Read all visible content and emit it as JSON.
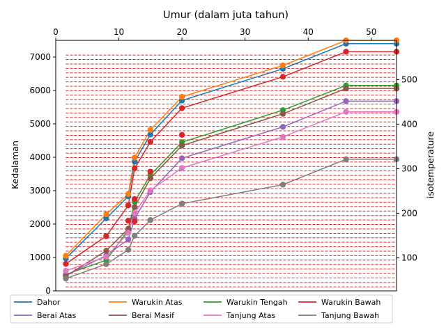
{
  "chart_data": {
    "type": "line",
    "title": "Umur (dalam juta tahun)",
    "xlabel": "",
    "ylabel": "Kedalaman",
    "y2label": "isotemperature",
    "xlim": [
      0,
      54
    ],
    "ylim": [
      0,
      7500
    ],
    "y2lim": [
      26,
      588
    ],
    "xticks": [
      "0",
      "10",
      "20",
      "30",
      "40",
      "50"
    ],
    "yticks": [
      "0",
      "1000",
      "2000",
      "3000",
      "4000",
      "5000",
      "6000",
      "7000"
    ],
    "y2ticks": [
      "100",
      "200",
      "300",
      "400",
      "500"
    ],
    "x_axis_position": "top",
    "isotherm_lines": {
      "color": "#d62728",
      "style": "dashed",
      "start": 35,
      "end": 560,
      "step": 10
    },
    "x": [
      1.6,
      8,
      11.5,
      12.5,
      15,
      20,
      36,
      46,
      54
    ],
    "series": [
      {
        "name": "Dahor",
        "color": "#1f77b4",
        "values": [
          970,
          2170,
          2830,
          3870,
          4680,
          5700,
          6650,
          7400,
          7400
        ]
      },
      {
        "name": "Warukin Atas",
        "color": "#ff7f0e",
        "values": [
          1050,
          2290,
          2900,
          3990,
          4820,
          5810,
          6750,
          7500,
          7500
        ]
      },
      {
        "name": "Warukin Tengah",
        "color": "#2ca02c",
        "values": [
          490,
          920,
          1830,
          2670,
          3470,
          4450,
          5410,
          6150,
          6150
        ]
      },
      {
        "name": "Warukin Bawah",
        "color": "#d62728",
        "values": [
          810,
          1640,
          2560,
          3670,
          4460,
          5470,
          6410,
          7160,
          7160
        ]
      },
      {
        "name": "Berai Atas",
        "color": "#9467bd",
        "values": [
          460,
          1060,
          1540,
          2160,
          2960,
          3970,
          4910,
          5680,
          5680
        ]
      },
      {
        "name": "Berai Masif",
        "color": "#8c564b",
        "values": [
          440,
          1200,
          1860,
          2510,
          3370,
          4350,
          5300,
          6060,
          6060
        ]
      },
      {
        "name": "Tanjung Atas",
        "color": "#e377c2",
        "values": [
          600,
          1020,
          1740,
          2330,
          3010,
          3680,
          4610,
          5360,
          5360
        ]
      },
      {
        "name": "Tanjung Bawah",
        "color": "#7f7f7f",
        "values": [
          370,
          800,
          1230,
          1650,
          2120,
          2610,
          3180,
          3940,
          3940
        ]
      }
    ],
    "point_series": [
      {
        "series": "Dahor",
        "color": "#1f77b4",
        "points": [
          [
            1.6,
            970
          ],
          [
            8,
            2170
          ],
          [
            11.5,
            2830
          ],
          [
            12.5,
            3870
          ],
          [
            15,
            4680
          ],
          [
            20,
            5700
          ],
          [
            36,
            6650
          ],
          [
            46,
            7400
          ],
          [
            54,
            7400
          ]
        ]
      },
      {
        "series": "Warukin Atas",
        "color": "#ff7f0e",
        "points": [
          [
            1.6,
            1050
          ],
          [
            8,
            2290
          ],
          [
            11.5,
            2900
          ],
          [
            12.5,
            3990
          ],
          [
            15,
            4820
          ],
          [
            20,
            5810
          ],
          [
            36,
            6750
          ],
          [
            46,
            7500
          ],
          [
            54,
            7500
          ]
        ]
      },
      {
        "series": "Warukin Tengah",
        "color": "#2ca02c",
        "points": [
          [
            1.6,
            490
          ],
          [
            8,
            920
          ],
          [
            11.5,
            1830
          ],
          [
            12.5,
            2670
          ],
          [
            15,
            3470
          ],
          [
            20,
            4450
          ],
          [
            36,
            5410
          ],
          [
            46,
            6150
          ],
          [
            54,
            6150
          ]
        ]
      },
      {
        "series": "Warukin Bawah",
        "color": "#d62728",
        "points": [
          [
            1.6,
            810
          ],
          [
            8,
            1640
          ],
          [
            11.5,
            2560
          ],
          [
            12.5,
            3670
          ],
          [
            15,
            4460
          ],
          [
            20,
            5470
          ],
          [
            36,
            6410
          ],
          [
            46,
            7160
          ],
          [
            54,
            7160
          ]
        ]
      },
      {
        "series": "Berai Atas",
        "color": "#9467bd",
        "points": [
          [
            1.6,
            460
          ],
          [
            8,
            1060
          ],
          [
            11.5,
            1540
          ],
          [
            12.5,
            2160
          ],
          [
            15,
            2960
          ],
          [
            20,
            3970
          ],
          [
            36,
            4910
          ],
          [
            46,
            5680
          ],
          [
            54,
            5680
          ]
        ]
      },
      {
        "series": "Berai Masif",
        "color": "#8c564b",
        "points": [
          [
            1.6,
            440
          ],
          [
            8,
            1200
          ],
          [
            11.5,
            1860
          ],
          [
            12.5,
            2510
          ],
          [
            15,
            3370
          ],
          [
            20,
            4350
          ],
          [
            36,
            5300
          ],
          [
            46,
            6060
          ],
          [
            54,
            6060
          ]
        ]
      },
      {
        "series": "Tanjung Atas",
        "color": "#e377c2",
        "points": [
          [
            1.6,
            600
          ],
          [
            8,
            1020
          ],
          [
            11.5,
            1740
          ],
          [
            12.5,
            2330
          ],
          [
            15,
            3010
          ],
          [
            20,
            3680
          ],
          [
            36,
            4610
          ],
          [
            46,
            5360
          ],
          [
            54,
            5360
          ]
        ]
      },
      {
        "series": "Tanjung Bawah",
        "color": "#7f7f7f",
        "points": [
          [
            1.6,
            370
          ],
          [
            8,
            800
          ],
          [
            11.5,
            1230
          ],
          [
            12.5,
            1650
          ],
          [
            15,
            2120
          ],
          [
            20,
            2610
          ],
          [
            36,
            3180
          ],
          [
            46,
            3940
          ],
          [
            54,
            3940
          ]
        ]
      }
    ],
    "extra_points": [
      {
        "color": "#d62728",
        "points": [
          [
            11.5,
            2100
          ],
          [
            12.5,
            2080
          ],
          [
            12.5,
            2750
          ],
          [
            15,
            3570
          ],
          [
            20,
            4670
          ]
        ]
      }
    ],
    "legend": {
      "position": "bottom",
      "columns": 4,
      "entries": [
        "Dahor",
        "Warukin Atas",
        "Warukin Tengah",
        "Warukin Bawah",
        "Berai Atas",
        "Berai Masif",
        "Tanjung Atas",
        "Tanjung Bawah"
      ]
    },
    "grid": false
  }
}
